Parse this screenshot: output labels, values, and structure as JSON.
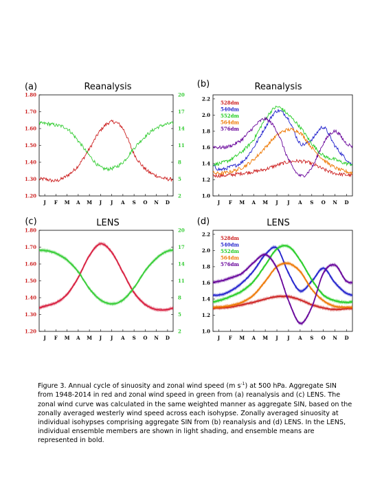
{
  "chart_data": [
    {
      "panel": "(a)",
      "type": "line",
      "title": "Reanalysis",
      "x_ticks": [
        "J",
        "F",
        "M",
        "A",
        "M",
        "J",
        "J",
        "A",
        "S",
        "O",
        "N",
        "D"
      ],
      "y_left_ticks": [
        "1.20",
        "1.30",
        "1.40",
        "1.50",
        "1.60",
        "1.70",
        "1.80"
      ],
      "y_right_ticks": [
        "2",
        "5",
        "8",
        "11",
        "14",
        "17",
        "20"
      ],
      "ylim_left": [
        1.2,
        1.8
      ],
      "ylim_right": [
        2,
        20
      ],
      "grid": false,
      "series": [
        {
          "axis": "left",
          "color": "#cc1f1f",
          "values": [
            1.3,
            1.29,
            1.32,
            1.38,
            1.48,
            1.59,
            1.64,
            1.6,
            1.45,
            1.36,
            1.32,
            1.3
          ]
        },
        {
          "axis": "right",
          "color": "#33cc33",
          "values": [
            14.9,
            14.6,
            14.0,
            11.8,
            9.2,
            7.1,
            6.9,
            8.0,
            10.5,
            12.6,
            14.1,
            14.8
          ]
        }
      ]
    },
    {
      "panel": "(b)",
      "type": "line",
      "title": "Reanalysis",
      "x_ticks": [
        "J",
        "F",
        "M",
        "A",
        "M",
        "J",
        "J",
        "A",
        "S",
        "O",
        "N",
        "D"
      ],
      "y_ticks": [
        "1.0",
        "1.2",
        "1.4",
        "1.6",
        "1.8",
        "2.0",
        "2.2"
      ],
      "ylim": [
        1.0,
        2.25
      ],
      "grid": false,
      "legend_position": "top-left",
      "series": [
        {
          "name": "528dm",
          "color": "#cc1f1f",
          "values": [
            1.25,
            1.26,
            1.28,
            1.3,
            1.33,
            1.38,
            1.42,
            1.43,
            1.4,
            1.33,
            1.28,
            1.26
          ]
        },
        {
          "name": "540dm",
          "color": "#1f1fcc",
          "values": [
            1.33,
            1.36,
            1.42,
            1.6,
            1.85,
            2.05,
            1.95,
            1.65,
            1.7,
            1.85,
            1.62,
            1.45
          ]
        },
        {
          "name": "552dm",
          "color": "#22cc22",
          "values": [
            1.4,
            1.45,
            1.55,
            1.7,
            1.95,
            2.1,
            2.0,
            1.85,
            1.65,
            1.5,
            1.45,
            1.4
          ]
        },
        {
          "name": "564dm",
          "color": "#ee7700",
          "values": [
            1.28,
            1.3,
            1.35,
            1.45,
            1.6,
            1.75,
            1.82,
            1.78,
            1.6,
            1.45,
            1.35,
            1.3
          ]
        },
        {
          "name": "576dm",
          "color": "#660099",
          "values": [
            1.6,
            1.62,
            1.7,
            1.85,
            1.95,
            1.8,
            1.45,
            1.25,
            1.35,
            1.65,
            1.8,
            1.65
          ]
        }
      ]
    },
    {
      "panel": "(c)",
      "type": "line",
      "title": "LENS",
      "x_ticks": [
        "J",
        "F",
        "M",
        "A",
        "M",
        "J",
        "J",
        "A",
        "S",
        "O",
        "N",
        "D"
      ],
      "y_left_ticks": [
        "1.20",
        "1.30",
        "1.40",
        "1.50",
        "1.60",
        "1.70",
        "1.80"
      ],
      "y_right_ticks": [
        "2",
        "5",
        "8",
        "11",
        "14",
        "17",
        "20"
      ],
      "ylim_left": [
        1.2,
        1.8
      ],
      "ylim_right": [
        2,
        20
      ],
      "grid": false,
      "series": [
        {
          "axis": "left",
          "color": "#d81b3c",
          "values": [
            1.35,
            1.37,
            1.42,
            1.52,
            1.65,
            1.72,
            1.67,
            1.55,
            1.43,
            1.36,
            1.33,
            1.33
          ]
        },
        {
          "axis": "right",
          "color": "#33cc33",
          "values": [
            16.4,
            15.9,
            14.7,
            12.6,
            9.6,
            7.6,
            6.9,
            7.6,
            9.8,
            12.8,
            15.0,
            16.3
          ]
        }
      ]
    },
    {
      "panel": "(d)",
      "type": "line",
      "title": "LENS",
      "x_ticks": [
        "J",
        "F",
        "M",
        "A",
        "M",
        "J",
        "J",
        "A",
        "S",
        "O",
        "N",
        "D"
      ],
      "y_ticks": [
        "1.0",
        "1.2",
        "1.4",
        "1.6",
        "1.8",
        "2.0",
        "2.2"
      ],
      "ylim": [
        1.0,
        2.25
      ],
      "grid": false,
      "legend_position": "top-left",
      "series": [
        {
          "name": "528dm",
          "color": "#cc1f1f",
          "values": [
            1.29,
            1.3,
            1.33,
            1.36,
            1.4,
            1.43,
            1.43,
            1.39,
            1.33,
            1.29,
            1.27,
            1.28
          ]
        },
        {
          "name": "540dm",
          "color": "#1f1fcc",
          "values": [
            1.45,
            1.5,
            1.6,
            1.75,
            1.95,
            2.03,
            1.72,
            1.5,
            1.62,
            1.78,
            1.6,
            1.47
          ]
        },
        {
          "name": "552dm",
          "color": "#22cc22",
          "values": [
            1.38,
            1.43,
            1.5,
            1.62,
            1.82,
            2.02,
            2.05,
            1.88,
            1.64,
            1.45,
            1.38,
            1.36
          ]
        },
        {
          "name": "564dm",
          "color": "#ee7700",
          "values": [
            1.3,
            1.32,
            1.36,
            1.45,
            1.62,
            1.8,
            1.84,
            1.74,
            1.52,
            1.38,
            1.31,
            1.3
          ]
        },
        {
          "name": "576dm",
          "color": "#660099",
          "values": [
            1.62,
            1.66,
            1.72,
            1.85,
            1.95,
            1.78,
            1.38,
            1.1,
            1.3,
            1.72,
            1.82,
            1.62
          ]
        }
      ]
    }
  ],
  "caption": {
    "line1_pre": "Figure 3. Annual cycle of sinuosity and zonal wind speed (m s",
    "line1_sup": "-1",
    "line1_post": ") at 500 hPa. Aggregate SIN from",
    "rest": "1948-2014 in red and zonal wind speed in green from (a) reanalysis and (c) LENS. The zonal wind curve was calculated in the same weighted manner as aggregate SIN, based on the zonally averaged westerly wind speed across each isohypse. Zonally averaged sinuosity at individual isohypses comprising aggregate SIN from (b) reanalysis and (d) LENS. In the LENS, individual ensemble members are shown in light shading, and ensemble means are represented in bold."
  }
}
